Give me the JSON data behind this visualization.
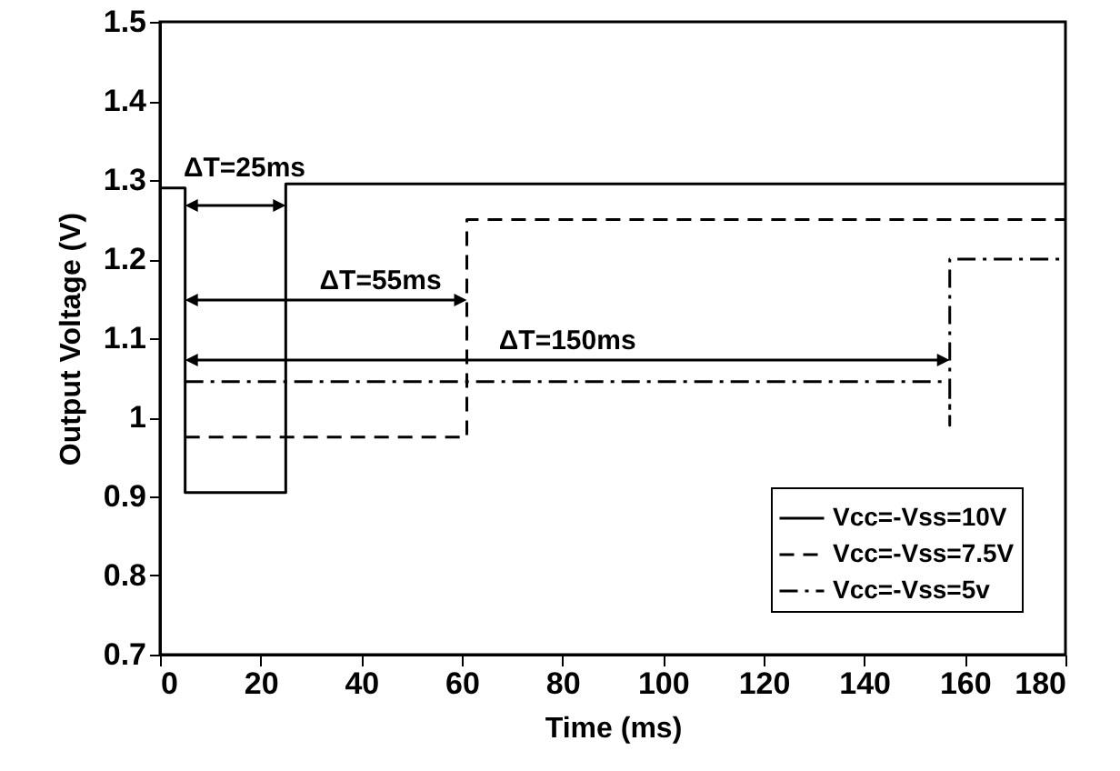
{
  "chart_data": {
    "type": "line",
    "xlabel": "Time (ms)",
    "ylabel": "Output Voltage (V)",
    "xlim": [
      0,
      180
    ],
    "xticks": [
      0,
      20,
      40,
      60,
      80,
      100,
      120,
      140,
      160,
      180
    ],
    "ylim": [
      0.7,
      1.5
    ],
    "yticks": [
      0.7,
      0.8,
      0.9,
      1,
      1.1,
      1.2,
      1.3,
      1.4,
      1.5
    ],
    "legend": "bottom right",
    "marker": "none",
    "series": [
      {
        "name": "Vcc=-Vss=10V",
        "color": "#000000",
        "line_style": "solid",
        "x": [
          0,
          5,
          5,
          25,
          25,
          180
        ],
        "values": [
          1.29,
          1.29,
          0.905,
          0.905,
          1.295,
          1.295
        ]
      },
      {
        "name": "Vcc=-Vss=7.5V",
        "color": "#000000",
        "line_style": "dashed",
        "x": [
          5,
          61,
          61,
          180
        ],
        "values": [
          0.975,
          0.975,
          1.25,
          1.25
        ]
      },
      {
        "name": "Vcc=-Vss=5v",
        "color": "#000000",
        "line_style": "dashdot",
        "x": [
          5,
          157,
          157,
          157,
          180
        ],
        "values": [
          1.045,
          1.045,
          0.99,
          1.2,
          1.2
        ]
      }
    ],
    "annotations": [
      "ΔT=25ms",
      "ΔT=55ms",
      "ΔT=150ms"
    ]
  }
}
